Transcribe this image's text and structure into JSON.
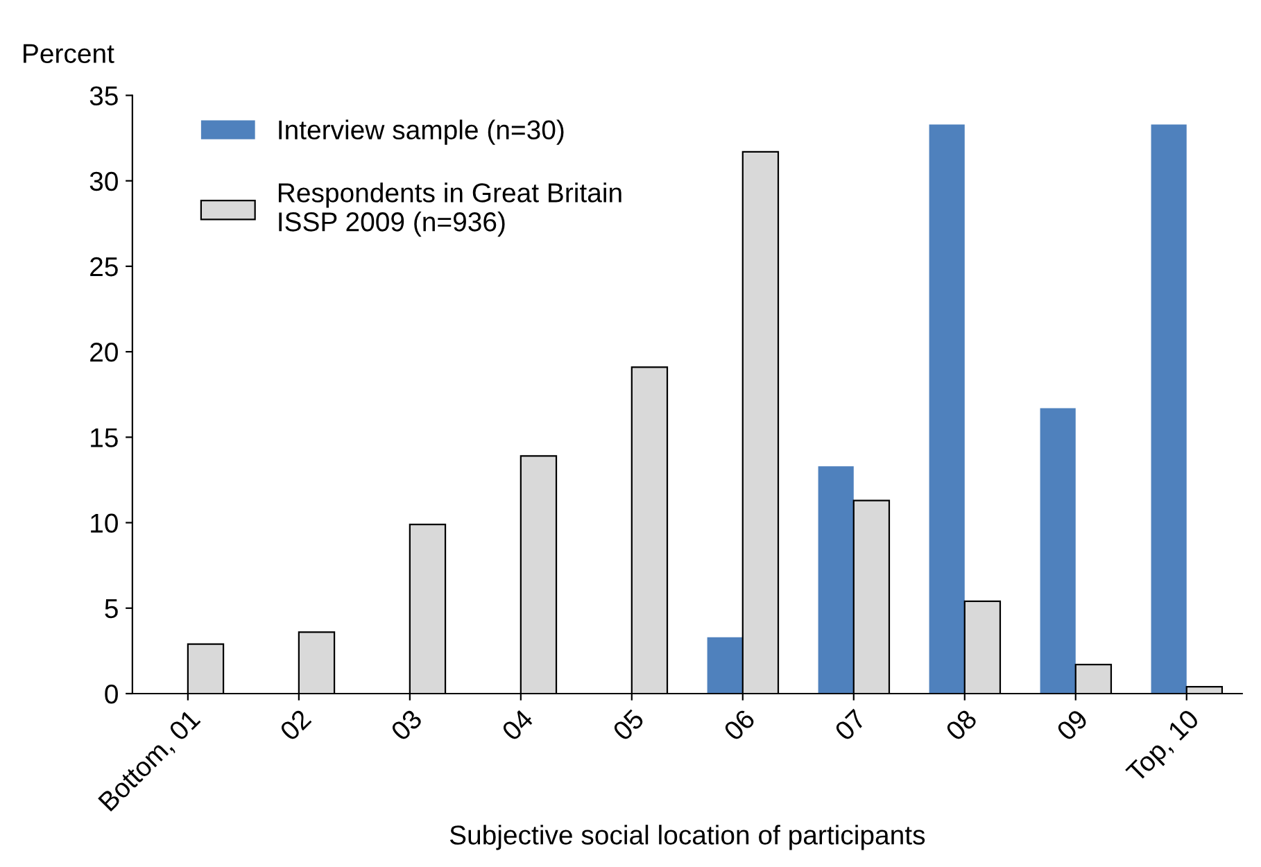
{
  "chart_data": {
    "type": "bar",
    "ylabel": "Percent",
    "xlabel": "Subjective social location of participants",
    "categories": [
      "Bottom, 01",
      "02",
      "03",
      "04",
      "05",
      "06",
      "07",
      "08",
      "09",
      "Top, 10"
    ],
    "series": [
      {
        "name": "Interview sample (n=30)",
        "color": "#4f81bd",
        "values": [
          0,
          0,
          0,
          0,
          0,
          3.3,
          13.3,
          33.3,
          16.7,
          33.3
        ]
      },
      {
        "name": "Respondents in Great Britain\nISSP 2009 (n=936)",
        "color": "#d9d9d9",
        "values": [
          2.9,
          3.6,
          9.9,
          13.9,
          19.1,
          31.7,
          11.3,
          5.4,
          1.7,
          0.4
        ]
      }
    ],
    "ylim": [
      0,
      35
    ],
    "yticks": [
      0,
      5,
      10,
      15,
      20,
      25,
      30,
      35
    ],
    "grid": false,
    "legend": "top left"
  }
}
